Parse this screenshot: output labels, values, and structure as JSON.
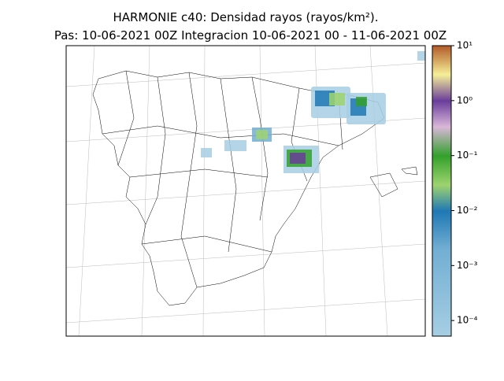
{
  "title": [
    "HARMONIE c40: Densidad rayos  (rayos/km²).",
    "Pas: 10-06-2021 00Z Integracion 10-06-2021 00 - 11-06-2021 00Z"
  ],
  "colorbar": {
    "scale": "log",
    "lim": [
      5.2e-05,
      10
    ],
    "ticks": [
      {
        "value": 10,
        "label": "10¹"
      },
      {
        "value": 1,
        "label": "10⁰"
      },
      {
        "value": 0.1,
        "label": "10⁻¹"
      },
      {
        "value": 0.01,
        "label": "10⁻²"
      },
      {
        "value": 0.001,
        "label": "10⁻³"
      },
      {
        "value": 0.0001,
        "label": "10⁻⁴"
      }
    ]
  }
}
